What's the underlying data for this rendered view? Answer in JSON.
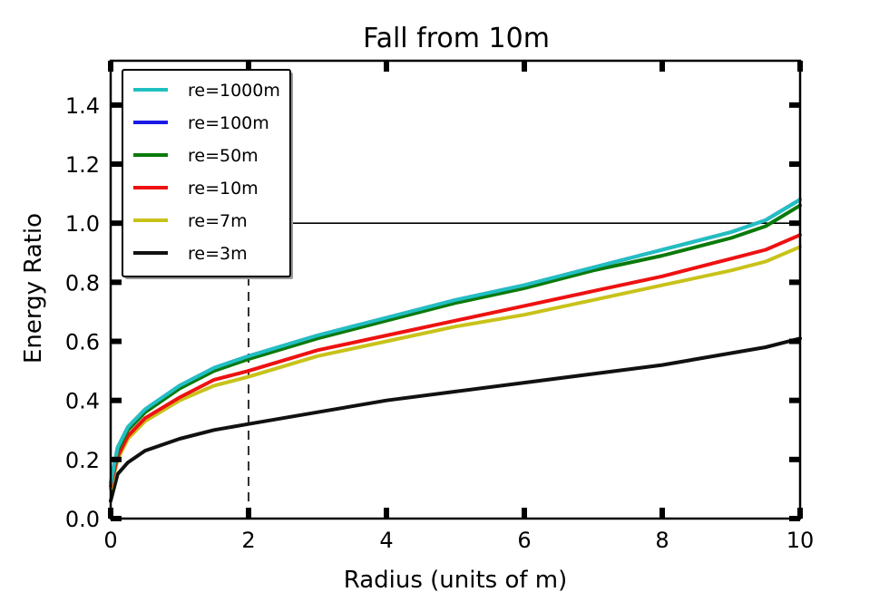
{
  "chart_data": {
    "type": "line",
    "title": "Fall from 10m",
    "xlabel": "Radius (units of m)",
    "ylabel": "Energy Ratio",
    "xlim": [
      0,
      10
    ],
    "ylim": [
      0,
      1.55
    ],
    "xticks": [
      "0",
      "2",
      "4",
      "6",
      "8",
      "10"
    ],
    "yticks": [
      "0.0",
      "0.2",
      "0.4",
      "0.6",
      "0.8",
      "1.0",
      "1.2",
      "1.4"
    ],
    "grid": false,
    "legend_position": "top-left",
    "x": [
      0,
      0.1,
      0.25,
      0.5,
      1,
      1.5,
      2,
      3,
      4,
      5,
      6,
      7,
      8,
      9,
      9.5,
      10
    ],
    "series": [
      {
        "name": "re=1000m",
        "color": "#21c0c0",
        "values": [
          0.12,
          0.24,
          0.31,
          0.37,
          0.45,
          0.51,
          0.55,
          0.62,
          0.68,
          0.74,
          0.79,
          0.85,
          0.91,
          0.97,
          1.01,
          1.08
        ]
      },
      {
        "name": "re=100m",
        "color": "#1a1ae6",
        "values": [
          0.12,
          0.24,
          0.31,
          0.37,
          0.45,
          0.51,
          0.55,
          0.62,
          0.68,
          0.74,
          0.79,
          0.85,
          0.91,
          0.97,
          1.01,
          1.08
        ]
      },
      {
        "name": "re=50m",
        "color": "#0a7a0a",
        "values": [
          0.12,
          0.23,
          0.3,
          0.36,
          0.44,
          0.5,
          0.54,
          0.61,
          0.67,
          0.73,
          0.78,
          0.84,
          0.89,
          0.95,
          0.99,
          1.06
        ]
      },
      {
        "name": "re=10m",
        "color": "#ee1111",
        "values": [
          0.11,
          0.21,
          0.28,
          0.34,
          0.41,
          0.47,
          0.5,
          0.57,
          0.62,
          0.67,
          0.72,
          0.77,
          0.82,
          0.88,
          0.91,
          0.96
        ]
      },
      {
        "name": "re=7m",
        "color": "#c8c21a",
        "values": [
          0.1,
          0.2,
          0.27,
          0.33,
          0.4,
          0.45,
          0.48,
          0.55,
          0.6,
          0.65,
          0.69,
          0.74,
          0.79,
          0.84,
          0.87,
          0.92
        ]
      },
      {
        "name": "re=3m",
        "color": "#111111",
        "values": [
          0.06,
          0.15,
          0.19,
          0.23,
          0.27,
          0.3,
          0.32,
          0.36,
          0.4,
          0.43,
          0.46,
          0.49,
          0.52,
          0.56,
          0.58,
          0.61
        ]
      }
    ],
    "reference_lines": [
      {
        "orientation": "horizontal",
        "value": 1.0,
        "style": "solid",
        "color": "#000000"
      },
      {
        "orientation": "vertical",
        "value": 2,
        "style": "dashed",
        "color": "#000000"
      }
    ]
  }
}
